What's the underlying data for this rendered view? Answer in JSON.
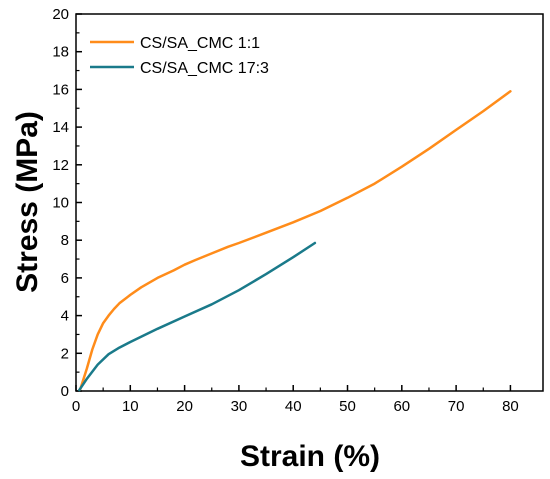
{
  "chart_data": {
    "type": "line",
    "xlabel": "Strain (%)",
    "ylabel": "Stress (MPa)",
    "xlim": [
      0,
      86
    ],
    "ylim": [
      0,
      20
    ],
    "xticks": [
      0,
      10,
      20,
      30,
      40,
      50,
      60,
      70,
      80
    ],
    "yticks": [
      0,
      2,
      4,
      6,
      8,
      10,
      12,
      14,
      16,
      18,
      20
    ],
    "grid": false,
    "legend_position": "top-left",
    "series": [
      {
        "name": "CS/SA_CMC 1:1",
        "color": "#ff8c1a",
        "x": [
          0.8,
          2,
          3,
          4,
          5,
          6,
          7,
          8,
          10,
          12,
          15,
          18,
          20,
          22,
          25,
          28,
          30,
          35,
          40,
          45,
          50,
          55,
          60,
          65,
          70,
          75,
          80
        ],
        "y": [
          0.1,
          1.2,
          2.2,
          3.0,
          3.6,
          4.0,
          4.35,
          4.65,
          5.1,
          5.5,
          6.0,
          6.4,
          6.7,
          6.95,
          7.3,
          7.65,
          7.85,
          8.4,
          8.95,
          9.55,
          10.25,
          11.0,
          11.9,
          12.85,
          13.85,
          14.85,
          15.9
        ]
      },
      {
        "name": "CS/SA_CMC 17:3",
        "color": "#1a7a8a",
        "x": [
          0.6,
          2,
          4,
          6,
          8,
          10,
          15,
          20,
          25,
          30,
          35,
          40,
          44
        ],
        "y": [
          0.05,
          0.65,
          1.4,
          1.95,
          2.3,
          2.6,
          3.3,
          3.95,
          4.6,
          5.35,
          6.2,
          7.1,
          7.85
        ]
      }
    ]
  }
}
